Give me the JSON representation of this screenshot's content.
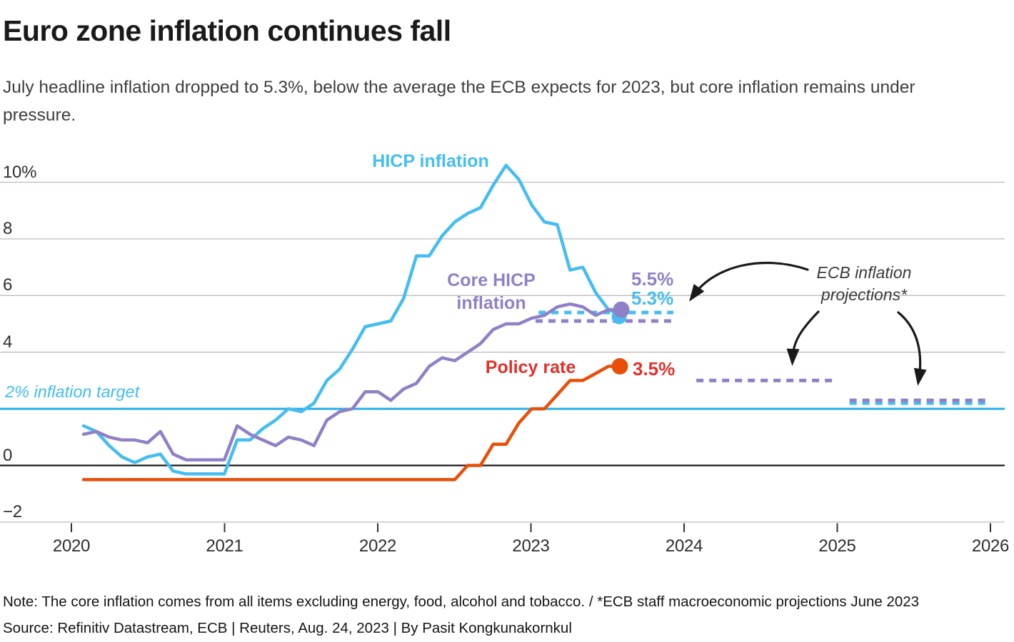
{
  "header": {
    "title": "Euro zone inflation continues fall",
    "subtitle": "July headline inflation dropped to 5.3%, below the average the ECB expects for 2023, but core inflation remains under pressure."
  },
  "footer": {
    "note": "Note: The core inflation comes from all items excluding energy, food, alcohol and tobacco. / *ECB staff macroeconomic projections June 2023",
    "source": "Source: Refinitiv Datastream, ECB | Reuters, Aug. 24, 2023 | By Pasit Kongkunakornkul"
  },
  "colors": {
    "hicp_blue": "#45bdf1",
    "core_purple": "#9180c6",
    "policy_orange": "#e8500a",
    "policy_red_text": "#e2312b",
    "target_blue": "#2bafe8",
    "grid_gray": "#c2baba",
    "arrow_black": "#1a1a1a"
  },
  "chart_data": {
    "type": "line",
    "title": "Euro zone inflation continues fall",
    "x": {
      "tick_labels": [
        "2020",
        "2021",
        "2022",
        "2023",
        "2024",
        "2025",
        "2026"
      ],
      "start_month": "2020-01",
      "end_month": "2023-07",
      "axis_range": [
        2020,
        2026
      ]
    },
    "y": {
      "unit": "%",
      "tick_labels": [
        "10%",
        "8",
        "6",
        "4",
        "0",
        "−2"
      ],
      "tick_values": [
        10,
        8,
        6,
        4,
        0,
        -2
      ],
      "ylim": [
        -2,
        10.6
      ],
      "target_value": 2,
      "target_label": "2% inflation target"
    },
    "series": [
      {
        "id": "hicp",
        "label": "HICP inflation",
        "color": "#45bdf1",
        "end_label": "5.3%",
        "values": [
          1.4,
          1.2,
          0.7,
          0.3,
          0.1,
          0.3,
          0.4,
          -0.2,
          -0.3,
          -0.3,
          -0.3,
          -0.3,
          0.9,
          0.9,
          1.3,
          1.6,
          2.0,
          1.9,
          2.2,
          3.0,
          3.4,
          4.1,
          4.9,
          5.0,
          5.1,
          5.9,
          7.4,
          7.4,
          8.1,
          8.6,
          8.9,
          9.1,
          9.9,
          10.6,
          10.1,
          9.2,
          8.6,
          8.5,
          6.9,
          7.0,
          6.1,
          5.5,
          5.3
        ]
      },
      {
        "id": "core",
        "label": "Core HICP inflation",
        "label_lines": [
          "Core HICP",
          "inflation"
        ],
        "color": "#9180c6",
        "end_label": "5.5%",
        "values": [
          1.1,
          1.2,
          1.0,
          0.9,
          0.9,
          0.8,
          1.2,
          0.4,
          0.2,
          0.2,
          0.2,
          0.2,
          1.4,
          1.1,
          0.9,
          0.7,
          1.0,
          0.9,
          0.7,
          1.6,
          1.9,
          2.0,
          2.6,
          2.6,
          2.3,
          2.7,
          2.9,
          3.5,
          3.8,
          3.7,
          4.0,
          4.3,
          4.8,
          5.0,
          5.0,
          5.2,
          5.3,
          5.6,
          5.7,
          5.6,
          5.3,
          5.5,
          5.5
        ]
      },
      {
        "id": "policy",
        "label": "Policy rate",
        "color": "#e8500a",
        "end_label": "3.5%",
        "values": [
          -0.5,
          -0.5,
          -0.5,
          -0.5,
          -0.5,
          -0.5,
          -0.5,
          -0.5,
          -0.5,
          -0.5,
          -0.5,
          -0.5,
          -0.5,
          -0.5,
          -0.5,
          -0.5,
          -0.5,
          -0.5,
          -0.5,
          -0.5,
          -0.5,
          -0.5,
          -0.5,
          -0.5,
          -0.5,
          -0.5,
          -0.5,
          -0.5,
          -0.5,
          -0.5,
          0.0,
          0.0,
          0.75,
          0.75,
          1.5,
          2.0,
          2.0,
          2.5,
          3.0,
          3.0,
          3.25,
          3.5,
          3.5
        ]
      }
    ],
    "projections": {
      "label_lines": [
        "ECB inflation",
        "projections*"
      ],
      "items": [
        {
          "series": "hicp",
          "period": "2023",
          "value": 5.4,
          "span_years": [
            2023.05,
            2023.93
          ]
        },
        {
          "series": "core",
          "period": "2023",
          "value": 5.1,
          "span_years": [
            2023.03,
            2023.94
          ]
        },
        {
          "series": "core",
          "period": "2024",
          "value": 3.0,
          "span_years": [
            2024.08,
            2024.97
          ]
        },
        {
          "series": "hicp",
          "period": "2025",
          "value": 2.2,
          "span_years": [
            2025.08,
            2025.97
          ]
        },
        {
          "series": "core",
          "period": "2025",
          "value": 2.3,
          "span_years": [
            2025.08,
            2025.97
          ]
        }
      ]
    }
  }
}
